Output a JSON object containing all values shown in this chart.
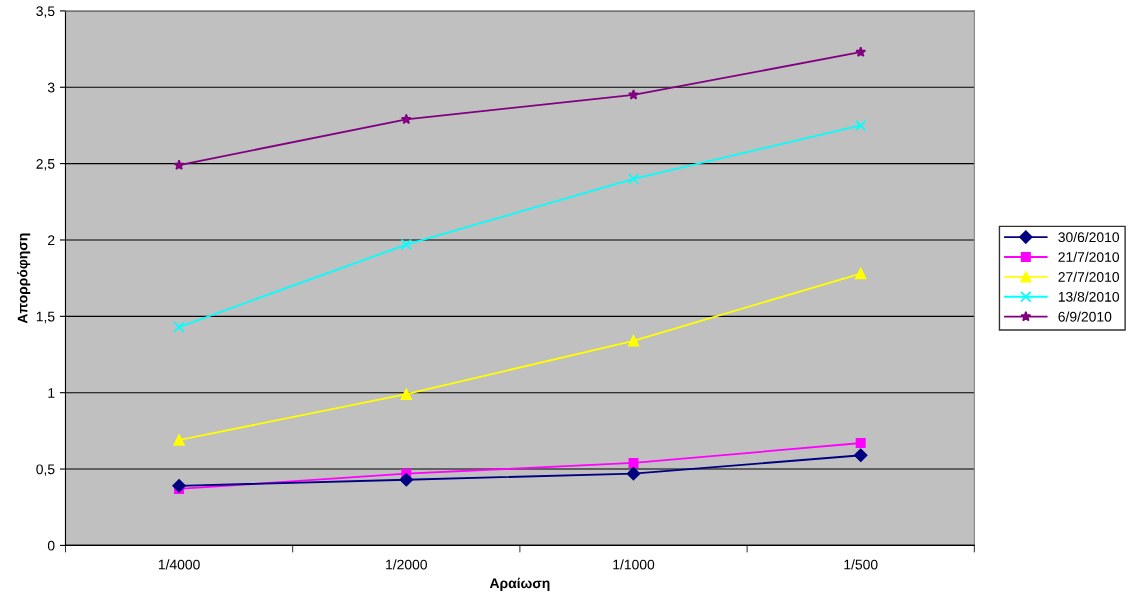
{
  "chart_data": {
    "type": "line",
    "xlabel": "Αραίωση",
    "ylabel": "Απορρόφηση",
    "categories": [
      "1/4000",
      "1/2000",
      "1/1000",
      "1/500"
    ],
    "series": [
      {
        "name": "30/6/2010",
        "color": "#000080",
        "marker": "diamond",
        "values": [
          0.39,
          0.43,
          0.47,
          0.59
        ]
      },
      {
        "name": "21/7/2010",
        "color": "#ff00ff",
        "marker": "square",
        "values": [
          0.37,
          0.47,
          0.54,
          0.67
        ]
      },
      {
        "name": "27/7/2010",
        "color": "#ffff00",
        "marker": "triangle",
        "values": [
          0.69,
          0.99,
          1.34,
          1.78
        ]
      },
      {
        "name": "13/8/2010",
        "color": "#00ffff",
        "marker": "cross",
        "values": [
          1.43,
          1.97,
          2.4,
          2.75
        ]
      },
      {
        "name": "6/9/2010",
        "color": "#800080",
        "marker": "star",
        "values": [
          2.49,
          2.79,
          2.95,
          3.23
        ]
      }
    ],
    "ylim": [
      0,
      3.5
    ],
    "yticks": [
      0,
      {
        "value": 0.5,
        "label": "0,5"
      },
      1,
      {
        "value": 1.5,
        "label": "1,5"
      },
      2,
      {
        "value": 2.5,
        "label": "2,5"
      },
      3,
      {
        "value": 3.5,
        "label": "3,5"
      }
    ],
    "grid": "y",
    "legend": "right"
  }
}
